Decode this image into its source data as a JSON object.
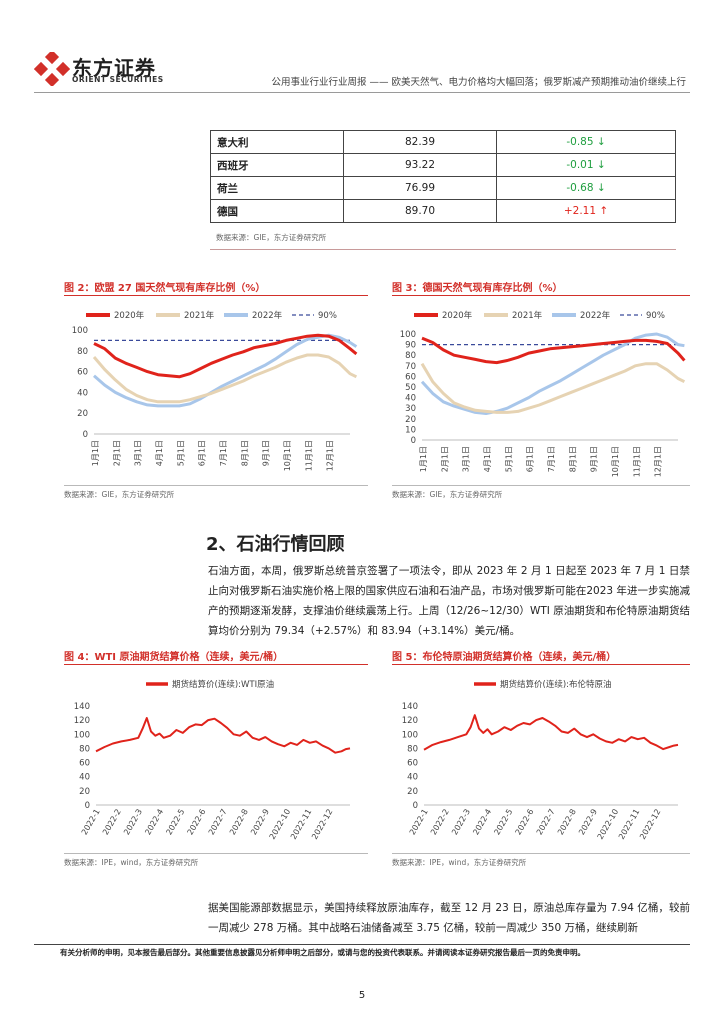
{
  "header": {
    "logo_cn": "东方证券",
    "logo_en": "ORIENT SECURITIES",
    "report_title": "公用事业行业行业周报 —— 欧美天然气、电力价格均大幅回落；俄罗斯减产预期推动油价继续上行"
  },
  "table": {
    "rows": [
      {
        "country": "意大利",
        "value": "82.39",
        "change": "-0.85 ↓",
        "dir": "down"
      },
      {
        "country": "西班牙",
        "value": "93.22",
        "change": "-0.01 ↓",
        "dir": "down"
      },
      {
        "country": "荷兰",
        "value": "76.99",
        "change": "-0.68 ↓",
        "dir": "down"
      },
      {
        "country": "德国",
        "value": "89.70",
        "change": "+2.11 ↑",
        "dir": "up"
      }
    ],
    "source": "数据来源：GIE，东方证券研究所"
  },
  "fig2": {
    "title": "图 2：欧盟 27 国天然气现有库存比例（%）",
    "source": "数据来源：GIE，东方证券研究所",
    "legend": [
      "2020年",
      "2021年",
      "2022年",
      "90%"
    ]
  },
  "fig3": {
    "title": "图 3：德国天然气现有库存比例（%）",
    "source": "数据来源：GIE，东方证券研究所",
    "legend": [
      "2020年",
      "2021年",
      "2022年",
      "90%"
    ]
  },
  "fig4": {
    "title": "图 4：WTI 原油期货结算价格（连续，美元/桶）",
    "source": "数据来源：IPE，wind，东方证券研究所",
    "legend": "期货结算价(连续):WTI原油"
  },
  "fig5": {
    "title": "图 5：布伦特原油期货结算价格（连续，美元/桶）",
    "source": "数据来源：IPE，wind，东方证券研究所",
    "legend": "期货结算价(连续):布伦特原油"
  },
  "section": {
    "title": "2、石油行情回顾",
    "para1": "石油方面，本周，俄罗斯总统普京签署了一项法令，即从 2023 年 2 月 1 日起至 2023 年 7 月 1 日禁止向对俄罗斯石油实施价格上限的国家供应石油和石油产品，市场对俄罗斯可能在2023 年进一步实施减产的预期逐渐发酵，支撑油价继续震荡上行。上周（12/26~12/30）WTI 原油期货和布伦特原油期货结算均价分别为 79.34（+2.57%）和 83.94（+3.14%）美元/桶。",
    "para2": "据美国能源部数据显示，美国持续释放原油库存，截至 12 月 23 日，原油总库存量为 7.94 亿桶，较前一周减少 278 万桶。其中战略石油储备减至 3.75 亿桶，较前一周减少 350 万桶，继续刷新"
  },
  "footer": {
    "disclaimer": "有关分析师的申明，见本报告最后部分。其他重要信息披露见分析师申明之后部分，或请与您的投资代表联系。并请阅读本证券研究报告最后一页的免责申明。",
    "page": "5"
  },
  "colors": {
    "series_2020": "#e0231b",
    "series_2021": "#e6d3b3",
    "series_2022": "#a8c6ea",
    "ref_90": "#3a4a9a",
    "accent": "#d2302a"
  },
  "chart_data": [
    {
      "type": "line",
      "title": "图 2：欧盟 27 国天然气现有库存比例（%）",
      "ylim": [
        0,
        100
      ],
      "y_ticks": [
        0,
        20,
        40,
        60,
        80,
        100
      ],
      "x_ticks": [
        "1月1日",
        "2月1日",
        "3月1日",
        "4月1日",
        "5月1日",
        "6月1日",
        "7月1日",
        "8月1日",
        "9月1日",
        "10月1日",
        "11月1日",
        "12月1日"
      ],
      "x_range": [
        0,
        12
      ],
      "reference_line": {
        "name": "90%",
        "value": 90
      },
      "series": [
        {
          "name": "2020年",
          "color": "#e0231b",
          "x": [
            0,
            0.5,
            1,
            1.5,
            2,
            2.5,
            3,
            3.5,
            4,
            4.5,
            5,
            5.5,
            6,
            6.5,
            7,
            7.5,
            8,
            8.5,
            9,
            9.5,
            10,
            10.5,
            11,
            11.5,
            12,
            12.3
          ],
          "y": [
            87,
            82,
            73,
            68,
            64,
            60,
            57,
            56,
            55,
            58,
            63,
            68,
            72,
            76,
            79,
            83,
            85,
            87,
            90,
            92,
            94,
            95,
            94,
            90,
            82,
            77
          ]
        },
        {
          "name": "2021年",
          "color": "#e6d3b3",
          "x": [
            0,
            0.5,
            1,
            1.5,
            2,
            2.5,
            3,
            3.5,
            4,
            4.5,
            5,
            5.5,
            6,
            6.5,
            7,
            7.5,
            8,
            8.5,
            9,
            9.5,
            10,
            10.5,
            11,
            11.5,
            12,
            12.3
          ],
          "y": [
            74,
            62,
            52,
            43,
            37,
            33,
            31,
            31,
            31,
            33,
            36,
            39,
            43,
            47,
            51,
            56,
            60,
            64,
            69,
            73,
            76,
            76,
            74,
            68,
            58,
            55
          ]
        },
        {
          "name": "2022年",
          "color": "#a8c6ea",
          "x": [
            0,
            0.5,
            1,
            1.5,
            2,
            2.5,
            3,
            3.5,
            4,
            4.5,
            5,
            5.5,
            6,
            6.5,
            7,
            7.5,
            8,
            8.5,
            9,
            9.5,
            10,
            10.5,
            11,
            11.5,
            12,
            12.3
          ],
          "y": [
            56,
            47,
            40,
            35,
            31,
            28,
            27,
            27,
            27,
            29,
            34,
            40,
            46,
            51,
            56,
            61,
            66,
            72,
            79,
            86,
            91,
            93,
            95,
            93,
            88,
            84
          ]
        }
      ]
    },
    {
      "type": "line",
      "title": "图 3：德国天然气现有库存比例（%）",
      "ylim": [
        0,
        100
      ],
      "y_ticks": [
        0,
        10,
        20,
        30,
        40,
        50,
        60,
        70,
        80,
        90,
        100
      ],
      "x_ticks": [
        "1月1日",
        "2月1日",
        "3月1日",
        "4月1日",
        "5月1日",
        "6月1日",
        "7月1日",
        "8月1日",
        "9月1日",
        "10月1日",
        "11月1日",
        "12月1日"
      ],
      "x_range": [
        0,
        12
      ],
      "reference_line": {
        "name": "90%",
        "value": 90
      },
      "series": [
        {
          "name": "2020年",
          "color": "#e0231b",
          "x": [
            0,
            0.5,
            1,
            1.5,
            2,
            2.5,
            3,
            3.5,
            4,
            4.5,
            5,
            5.5,
            6,
            6.5,
            7,
            7.5,
            8,
            8.5,
            9,
            9.5,
            10,
            10.5,
            11,
            11.5,
            12,
            12.3
          ],
          "y": [
            96,
            92,
            85,
            80,
            78,
            76,
            74,
            73,
            75,
            78,
            82,
            84,
            86,
            87,
            88,
            89,
            90,
            91,
            92,
            93,
            94,
            94,
            93,
            91,
            82,
            75
          ]
        },
        {
          "name": "2021年",
          "color": "#e6d3b3",
          "x": [
            0,
            0.5,
            1,
            1.5,
            2,
            2.5,
            3,
            3.5,
            4,
            4.5,
            5,
            5.5,
            6,
            6.5,
            7,
            7.5,
            8,
            8.5,
            9,
            9.5,
            10,
            10.5,
            11,
            11.5,
            12,
            12.3
          ],
          "y": [
            72,
            55,
            44,
            35,
            31,
            28,
            27,
            26,
            26,
            27,
            30,
            33,
            37,
            41,
            45,
            49,
            53,
            57,
            61,
            65,
            70,
            72,
            72,
            66,
            58,
            55
          ]
        },
        {
          "name": "2022年",
          "color": "#a8c6ea",
          "x": [
            0,
            0.5,
            1,
            1.5,
            2,
            2.5,
            3,
            3.5,
            4,
            4.5,
            5,
            5.5,
            6,
            6.5,
            7,
            7.5,
            8,
            8.5,
            9,
            9.5,
            10,
            10.5,
            11,
            11.5,
            12,
            12.3
          ],
          "y": [
            55,
            44,
            36,
            32,
            29,
            26,
            25,
            27,
            30,
            35,
            40,
            46,
            51,
            56,
            62,
            68,
            74,
            80,
            85,
            90,
            96,
            99,
            100,
            97,
            90,
            89
          ]
        }
      ]
    },
    {
      "type": "line",
      "title": "图 4：WTI 原油期货结算价格（连续，美元/桶）",
      "ylim": [
        0,
        140
      ],
      "y_ticks": [
        0,
        20,
        40,
        60,
        80,
        100,
        120,
        140
      ],
      "x_ticks": [
        "2022-1",
        "2022-2",
        "2022-3",
        "2022-4",
        "2022-5",
        "2022-6",
        "2022-7",
        "2022-8",
        "2022-9",
        "2022-10",
        "2022-11",
        "2022-12"
      ],
      "x_range": [
        0,
        12
      ],
      "series": [
        {
          "name": "期货结算价(连续):WTI原油",
          "color": "#e0231b",
          "x": [
            0,
            0.4,
            0.8,
            1.2,
            1.6,
            2.0,
            2.2,
            2.4,
            2.6,
            2.8,
            3.0,
            3.2,
            3.5,
            3.8,
            4.1,
            4.4,
            4.7,
            5.0,
            5.3,
            5.6,
            5.9,
            6.2,
            6.5,
            6.8,
            7.1,
            7.4,
            7.7,
            8.0,
            8.3,
            8.6,
            8.9,
            9.2,
            9.5,
            9.8,
            10.1,
            10.4,
            10.7,
            11.0,
            11.3,
            11.6,
            11.8,
            12.0
          ],
          "y": [
            76,
            82,
            87,
            90,
            92,
            95,
            108,
            123,
            104,
            98,
            101,
            95,
            98,
            106,
            102,
            110,
            114,
            113,
            120,
            122,
            116,
            109,
            100,
            98,
            104,
            95,
            92,
            96,
            90,
            86,
            83,
            88,
            85,
            92,
            88,
            90,
            84,
            80,
            74,
            76,
            79,
            80
          ]
        }
      ]
    },
    {
      "type": "line",
      "title": "图 5：布伦特原油期货结算价格（连续，美元/桶）",
      "ylim": [
        0,
        140
      ],
      "y_ticks": [
        0,
        20,
        40,
        60,
        80,
        100,
        120,
        140
      ],
      "x_ticks": [
        "2022-1",
        "2022-2",
        "2022-3",
        "2022-4",
        "2022-5",
        "2022-6",
        "2022-7",
        "2022-8",
        "2022-9",
        "2022-10",
        "2022-11",
        "2022-12"
      ],
      "x_range": [
        0,
        12
      ],
      "series": [
        {
          "name": "期货结算价(连续):布伦特原油",
          "color": "#e0231b",
          "x": [
            0,
            0.4,
            0.8,
            1.2,
            1.6,
            2.0,
            2.2,
            2.4,
            2.6,
            2.8,
            3.0,
            3.2,
            3.5,
            3.8,
            4.1,
            4.4,
            4.7,
            5.0,
            5.3,
            5.6,
            5.9,
            6.2,
            6.5,
            6.8,
            7.1,
            7.4,
            7.7,
            8.0,
            8.3,
            8.6,
            8.9,
            9.2,
            9.5,
            9.8,
            10.1,
            10.4,
            10.7,
            11.0,
            11.3,
            11.6,
            11.8,
            12.0
          ],
          "y": [
            78,
            85,
            89,
            92,
            96,
            100,
            110,
            127,
            108,
            102,
            107,
            100,
            104,
            110,
            106,
            112,
            116,
            114,
            120,
            123,
            118,
            112,
            104,
            102,
            108,
            100,
            96,
            100,
            94,
            90,
            88,
            93,
            90,
            96,
            93,
            95,
            88,
            84,
            79,
            82,
            84,
            85
          ]
        }
      ]
    }
  ]
}
